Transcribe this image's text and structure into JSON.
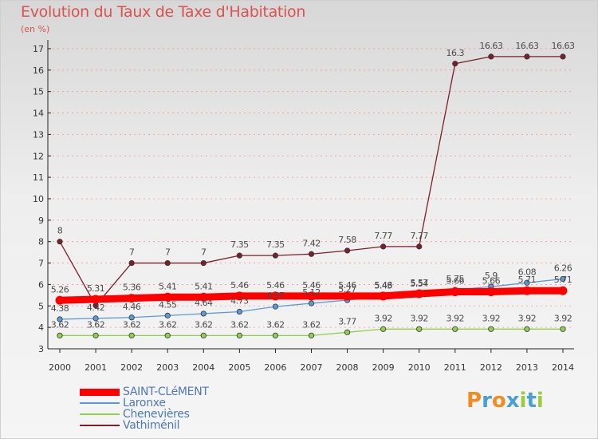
{
  "title": "Evolution du Taux de Taxe d'Habitation",
  "subtitle": "(en %)",
  "logo": [
    "P",
    "r",
    "o",
    "x",
    "i",
    "t",
    "i"
  ],
  "logo_colors": [
    "#f28c1e",
    "#4a9fd4",
    "#f28c1e",
    "#4a9fd4",
    "#9ccc3c",
    "#4a9fd4",
    "#9ccc3c"
  ],
  "colors": {
    "grid": "#ff8888",
    "axis": "#222222",
    "tick_text": "#333333",
    "value_text": "#4a4a4a"
  },
  "chart_data": {
    "type": "line",
    "title": "Evolution du Taux de Taxe d'Habitation",
    "subtitle": "(en %)",
    "xlabel": "",
    "ylabel": "",
    "x": [
      2000,
      2001,
      2002,
      2003,
      2004,
      2005,
      2006,
      2007,
      2008,
      2009,
      2010,
      2011,
      2012,
      2013,
      2014
    ],
    "ylim": [
      3,
      17
    ],
    "yticks": [
      3,
      4,
      5,
      6,
      7,
      8,
      9,
      10,
      11,
      12,
      13,
      14,
      15,
      16,
      17
    ],
    "grid": "horizontal dashed",
    "legend_position": "bottom-left",
    "series": [
      {
        "name": "SAINT-CLéMENT",
        "color": "#ff0000",
        "width": "thick",
        "values": [
          5.26,
          5.31,
          5.36,
          5.41,
          5.41,
          5.46,
          5.46,
          5.46,
          5.46,
          5.46,
          5.57,
          5.66,
          5.66,
          5.71,
          5.71
        ],
        "labels": [
          "5.26",
          "5.31",
          "5.36",
          "5.41",
          "5.41",
          "5.46",
          "5.46",
          "5.46",
          "5.46",
          "5.46",
          "5.57",
          "5.66",
          "5.66",
          "5.71",
          "5.71"
        ]
      },
      {
        "name": "Laronxe",
        "color": "#5b9bd5",
        "width": "thin",
        "values": [
          4.38,
          4.42,
          4.46,
          4.55,
          4.64,
          4.73,
          4.97,
          5.12,
          5.27,
          5.43,
          5.54,
          5.75,
          5.9,
          6.08,
          6.26
        ],
        "labels": [
          "4.38",
          "4.42",
          "4.46",
          "4.55",
          "4.64",
          "4.73",
          "4.97",
          "5.12",
          "5.27",
          "5.43",
          "5.54",
          "5.75",
          "5.9",
          "6.08",
          "6.26"
        ]
      },
      {
        "name": "Chenevières",
        "color": "#90d050",
        "width": "thin",
        "values": [
          3.62,
          3.62,
          3.62,
          3.62,
          3.62,
          3.62,
          3.62,
          3.62,
          3.77,
          3.92,
          3.92,
          3.92,
          3.92,
          3.92,
          3.92
        ],
        "labels": [
          "3.62",
          "3.62",
          "3.62",
          "3.62",
          "3.62",
          "3.62",
          "3.62",
          "3.62",
          "3.77",
          "3.92",
          "3.92",
          "3.92",
          "3.92",
          "3.92",
          "3.92"
        ]
      },
      {
        "name": "Vathiménil",
        "color": "#7a1f2b",
        "width": "thin",
        "values": [
          8,
          5.02,
          7,
          7,
          7,
          7.35,
          7.35,
          7.42,
          7.58,
          7.77,
          7.77,
          16.3,
          16.63,
          16.63,
          16.63
        ],
        "labels": [
          "8",
          "",
          "7",
          "7",
          "7",
          "7.35",
          "7.35",
          "7.42",
          "7.58",
          "7.77",
          "7.77",
          "16.3",
          "16.63",
          "16.63",
          "16.63"
        ]
      }
    ]
  }
}
